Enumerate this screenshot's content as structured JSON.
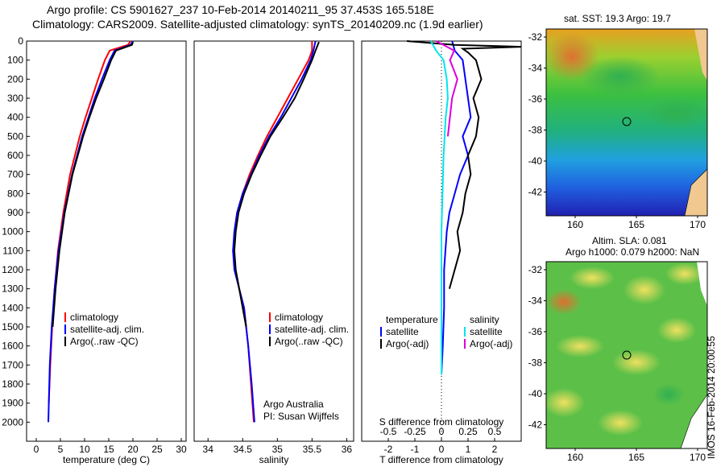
{
  "title_line1": "Argo profile: CS 5901627_237 10-Feb-2014 20140211_95 37.453S 165.518E",
  "title_line2": "Climatology: CARS2009. Satellite-adjusted climatology: synTS_20140209.nc (1.9d earlier)",
  "colors": {
    "climatology": "#ff0000",
    "satellite": "#0000ff",
    "argo": "#000000",
    "sal_satellite": "#00e5ee",
    "sal_argo": "#dd00dd"
  },
  "chart_data": [
    {
      "type": "line",
      "name": "temperature",
      "xlabel": "temperature (deg C)",
      "ylabel": "",
      "xlim": [
        -2,
        31
      ],
      "ylim": [
        2100,
        0
      ],
      "xticks": [
        0,
        5,
        10,
        15,
        20,
        25,
        30
      ],
      "yticks": [
        0,
        100,
        200,
        300,
        400,
        500,
        600,
        700,
        800,
        900,
        1000,
        1100,
        1200,
        1300,
        1400,
        1500,
        1600,
        1700,
        1800,
        1900,
        2000
      ],
      "legend": [
        "climatology",
        "satellite-adj. clim.",
        "Argo(..raw -QC)"
      ],
      "series": [
        {
          "name": "climatology",
          "depth": [
            0,
            20,
            50,
            100,
            200,
            300,
            400,
            500,
            700,
            900,
            1100,
            1300,
            1500,
            1700,
            1900
          ],
          "values": [
            19.5,
            19,
            15.2,
            14.2,
            12.8,
            11.5,
            10.2,
            9.0,
            7.0,
            5.6,
            4.5,
            3.8,
            3.3,
            2.9,
            2.6
          ]
        },
        {
          "name": "satellite-adj. clim.",
          "depth": [
            0,
            20,
            50,
            100,
            200,
            300,
            400,
            500,
            700,
            900,
            1100,
            1300,
            1500,
            1700,
            2000
          ],
          "values": [
            20,
            19.5,
            16.2,
            15.2,
            13.6,
            12.1,
            10.8,
            9.5,
            7.4,
            5.8,
            4.6,
            3.8,
            3.2,
            2.8,
            2.5
          ]
        },
        {
          "name": "Argo(..raw -QC)",
          "depth": [
            5,
            20,
            50,
            100,
            200,
            300,
            400,
            500,
            700,
            900,
            1100,
            1300,
            1500
          ],
          "values": [
            20,
            19.8,
            16.5,
            15.5,
            14.0,
            12.4,
            11.0,
            9.7,
            7.5,
            5.9,
            4.8,
            4.0,
            3.4
          ]
        }
      ]
    },
    {
      "type": "line",
      "name": "salinity",
      "xlabel": "salinity",
      "ylabel": "",
      "xlim": [
        33.8,
        36.1
      ],
      "ylim": [
        2100,
        0
      ],
      "xticks": [
        34,
        34.5,
        35,
        35.5,
        36
      ],
      "legend": [
        "climatology",
        "satellite-adj. clim.",
        "Argo(..raw -QC)"
      ],
      "annotation": [
        "Argo Australia",
        "PI: Susan Wijffels"
      ],
      "series": [
        {
          "name": "climatology",
          "depth": [
            0,
            50,
            100,
            200,
            300,
            400,
            500,
            600,
            700,
            800,
            900,
            1000,
            1100,
            1200,
            1300,
            1400,
            1600,
            1800,
            2000
          ],
          "values": [
            35.5,
            35.5,
            35.45,
            35.3,
            35.15,
            35.0,
            34.85,
            34.72,
            34.6,
            34.5,
            34.42,
            34.38,
            34.37,
            34.39,
            34.45,
            34.52,
            34.58,
            34.62,
            34.66
          ]
        },
        {
          "name": "satellite-adj. clim.",
          "depth": [
            0,
            50,
            100,
            200,
            300,
            400,
            500,
            600,
            700,
            800,
            900,
            1000,
            1100,
            1200,
            1300,
            1400,
            1600,
            1800,
            2000
          ],
          "values": [
            35.55,
            35.52,
            35.48,
            35.35,
            35.2,
            35.05,
            34.88,
            34.74,
            34.62,
            34.5,
            34.42,
            34.38,
            34.36,
            34.38,
            34.45,
            34.52,
            34.58,
            34.63,
            34.67
          ]
        },
        {
          "name": "Argo(..raw -QC)",
          "depth": [
            5,
            50,
            100,
            200,
            300,
            400,
            500,
            600,
            700,
            800,
            900,
            1000,
            1100,
            1200,
            1300,
            1400,
            1500
          ],
          "values": [
            35.6,
            35.55,
            35.5,
            35.38,
            35.25,
            35.08,
            34.9,
            34.76,
            34.63,
            34.52,
            34.44,
            34.4,
            34.38,
            34.4,
            34.45,
            34.5,
            34.55
          ]
        }
      ]
    },
    {
      "type": "line",
      "name": "difference",
      "xlabel": "T difference from climatology",
      "xlabel2": "S difference from climatology",
      "xlim": [
        -3,
        3
      ],
      "ylim": [
        2100,
        0
      ],
      "xticks": [
        -2,
        -1,
        0,
        1,
        2
      ],
      "xticks_s": [
        -0.5,
        -0.25,
        0,
        0.25,
        0.5
      ],
      "legend_left_title": "temperature",
      "legend_right_title": "salinity",
      "legend_left": [
        "satellite",
        "Argo(-adj)"
      ],
      "legend_right": [
        "satellite",
        "Argo(-adj)"
      ],
      "series": [
        {
          "name": "T satellite",
          "depth": [
            0,
            50,
            100,
            200,
            300,
            400,
            500,
            600,
            700,
            800,
            900,
            1000,
            1200,
            1400,
            1600,
            1750
          ],
          "values": [
            0.4,
            0.5,
            0.8,
            0.9,
            1.0,
            1.1,
            0.8,
            1.0,
            0.7,
            0.5,
            0.3,
            0.2,
            0.1,
            0.1,
            0.05,
            0.0
          ]
        },
        {
          "name": "T Argo(-adj)",
          "depth": [
            0,
            20,
            30,
            40,
            60,
            100,
            200,
            300,
            400,
            500,
            600,
            700,
            800,
            900,
            1000,
            1100,
            1200,
            1300
          ],
          "values": [
            -1.3,
            0.5,
            3.0,
            0.8,
            1.0,
            1.3,
            1.5,
            1.2,
            1.4,
            1.3,
            1.0,
            1.1,
            0.9,
            0.8,
            0.6,
            0.7,
            0.5,
            0.3
          ]
        },
        {
          "name": "S satellite",
          "depth": [
            0,
            50,
            100,
            200,
            300,
            400,
            500,
            600,
            800,
            1000,
            1200,
            1400,
            1600,
            1750
          ],
          "values": [
            -0.1,
            -0.05,
            0.02,
            0.05,
            0.06,
            0.04,
            0.03,
            0.02,
            0.01,
            0.0,
            0.0,
            0.0,
            0.0,
            0.0
          ]
        },
        {
          "name": "S Argo(-adj)",
          "depth": [
            0,
            50,
            100,
            200,
            300,
            400,
            500
          ],
          "values": [
            -0.05,
            0.12,
            0.08,
            0.15,
            0.1,
            0.08,
            0.06
          ]
        }
      ]
    }
  ],
  "map_sst": {
    "title": "sat. SST: 19.3 Argo: 19.7",
    "yticks": [
      "-32",
      "-34",
      "-36",
      "-38",
      "-40",
      "-42"
    ],
    "xticks": [
      "160",
      "165",
      "170"
    ]
  },
  "map_sla": {
    "title_line1": "Altim. SLA: 0.081",
    "title_line2": "Argo h1000: 0.079 h2000: NaN",
    "yticks": [
      "-32",
      "-34",
      "-36",
      "-38",
      "-40",
      "-42"
    ],
    "xticks": [
      "160",
      "165",
      "170"
    ]
  },
  "stamp": "IMOS 16-Feb-2014 20:00:55"
}
